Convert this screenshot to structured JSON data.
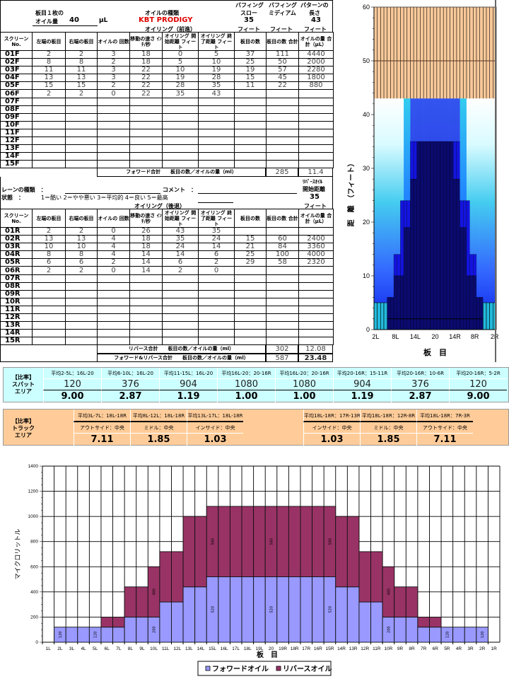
{
  "header": {
    "oil_per_board_label_1": "板目１枚の",
    "oil_per_board_label_2": "オイル量",
    "oil_per_board_value": "40",
    "oil_per_board_unit": "μL",
    "oil_type_label": "オイルの種類",
    "oil_type_value": "KBT PRODIGY",
    "forward_title": "オイリング（前進）",
    "buff_slow_1": "バフィング",
    "buff_slow_2": "スロー",
    "buff_slow_value": "35",
    "buff_slow_unit": "フィート",
    "buff_med_1": "バフィング",
    "buff_med_2": "ミディアム",
    "buff_med_unit": "フィート",
    "pattern_len_1": "パターンの",
    "pattern_len_2": "長さ",
    "pattern_len_value": "43",
    "pattern_len_unit": "フィート"
  },
  "columns": [
    "スクリーン No.",
    "左端の板目",
    "右端の板目",
    "オイルの 回数",
    "移動の速さ ｲﾝﾁ/秒",
    "オイリング 開始距離 フィート",
    "オイリング 終了距離 フィート",
    "板目の数",
    "板目の数 合計",
    "オイルの量 合計（μL）"
  ],
  "forward_rows": [
    [
      "01F",
      "2",
      "2",
      "3",
      "18",
      "0",
      "5",
      "37",
      "111",
      "4440"
    ],
    [
      "02F",
      "8",
      "8",
      "2",
      "18",
      "5",
      "10",
      "25",
      "50",
      "2000"
    ],
    [
      "03F",
      "11",
      "11",
      "3",
      "22",
      "10",
      "19",
      "19",
      "57",
      "2280"
    ],
    [
      "04F",
      "13",
      "13",
      "3",
      "22",
      "19",
      "28",
      "15",
      "45",
      "1800"
    ],
    [
      "05F",
      "15",
      "15",
      "2",
      "22",
      "28",
      "35",
      "11",
      "22",
      "880"
    ],
    [
      "06F",
      "2",
      "2",
      "0",
      "22",
      "35",
      "43",
      "",
      "",
      ""
    ],
    [
      "07F",
      "",
      "",
      "",
      "",
      "",
      "",
      "",
      "",
      ""
    ],
    [
      "08F",
      "",
      "",
      "",
      "",
      "",
      "",
      "",
      "",
      ""
    ],
    [
      "09F",
      "",
      "",
      "",
      "",
      "",
      "",
      "",
      "",
      ""
    ],
    [
      "10F",
      "",
      "",
      "",
      "",
      "",
      "",
      "",
      "",
      ""
    ],
    [
      "11F",
      "",
      "",
      "",
      "",
      "",
      "",
      "",
      "",
      ""
    ],
    [
      "12F",
      "",
      "",
      "",
      "",
      "",
      "",
      "",
      "",
      ""
    ],
    [
      "13F",
      "",
      "",
      "",
      "",
      "",
      "",
      "",
      "",
      ""
    ],
    [
      "14F",
      "",
      "",
      "",
      "",
      "",
      "",
      "",
      "",
      ""
    ],
    [
      "15F",
      "",
      "",
      "",
      "",
      "",
      "",
      "",
      "",
      ""
    ]
  ],
  "forward_total": {
    "label": "フォワード合計　　板目の数／オイルの量（ml）",
    "boards": "285",
    "oil": "11.4"
  },
  "info": {
    "lane_type_label": "レーンの種類　：",
    "comment_label": "コメント　：",
    "condition_label": "状態　：",
    "condition_scale": "1＝酷い 2＝やや悪い 3＝平均的 4＝良い 5＝最高",
    "reverse_title": "オイリング（後退）",
    "reverse_start_1": "ﾘﾊﾞｰｽｵｲﾙ",
    "reverse_start_2": "開始距離",
    "reverse_start_value": "35",
    "reverse_start_unit": "フィート"
  },
  "reverse_rows": [
    [
      "01R",
      "2",
      "2",
      "0",
      "26",
      "43",
      "35",
      "",
      "",
      ""
    ],
    [
      "02R",
      "13",
      "13",
      "4",
      "18",
      "35",
      "24",
      "15",
      "60",
      "2400"
    ],
    [
      "03R",
      "10",
      "10",
      "4",
      "18",
      "24",
      "14",
      "21",
      "84",
      "3360"
    ],
    [
      "04R",
      "8",
      "8",
      "4",
      "14",
      "14",
      "6",
      "25",
      "100",
      "4000"
    ],
    [
      "05R",
      "6",
      "6",
      "2",
      "14",
      "6",
      "2",
      "29",
      "58",
      "2320"
    ],
    [
      "06R",
      "2",
      "2",
      "0",
      "14",
      "2",
      "0",
      "",
      "",
      ""
    ],
    [
      "07R",
      "",
      "",
      "",
      "",
      "",
      "",
      "",
      "",
      ""
    ],
    [
      "08R",
      "",
      "",
      "",
      "",
      "",
      "",
      "",
      "",
      ""
    ],
    [
      "09R",
      "",
      "",
      "",
      "",
      "",
      "",
      "",
      "",
      ""
    ],
    [
      "10R",
      "",
      "",
      "",
      "",
      "",
      "",
      "",
      "",
      ""
    ],
    [
      "11R",
      "",
      "",
      "",
      "",
      "",
      "",
      "",
      "",
      ""
    ],
    [
      "12R",
      "",
      "",
      "",
      "",
      "",
      "",
      "",
      "",
      ""
    ],
    [
      "13R",
      "",
      "",
      "",
      "",
      "",
      "",
      "",
      "",
      ""
    ],
    [
      "14R",
      "",
      "",
      "",
      "",
      "",
      "",
      "",
      "",
      ""
    ],
    [
      "15R",
      "",
      "",
      "",
      "",
      "",
      "",
      "",
      "",
      ""
    ]
  ],
  "reverse_total": {
    "label": "リバース合計　　板目の数／オイルの量（ml）",
    "boards": "302",
    "oil": "12.08"
  },
  "grand_total": {
    "label": "フォワード&リバース合計　　板目の数／オイルの量（ml）",
    "boards": "587",
    "oil": "23.48"
  },
  "spot_area": {
    "label_1": "【比率】",
    "label_2": "スパット",
    "label_3": "エリア",
    "color": "#ccffff",
    "headers": [
      "平均2-5L：16L-20",
      "平均6-10L：16L-20",
      "平均11-15L：16L-20",
      "平均16L-20：20-16R",
      "平均16L-20：20-16R",
      "平均20-16R：15-11R",
      "平均20-16R：10-6R",
      "平均20-16R：5-2R"
    ],
    "values": [
      "120",
      "376",
      "904",
      "1080",
      "1080",
      "904",
      "376",
      "120"
    ],
    "ratios": [
      "9.00",
      "2.87",
      "1.19",
      "1.00",
      "1.00",
      "1.19",
      "2.87",
      "9.00"
    ]
  },
  "track_area": {
    "label_1": "【比率】",
    "label_2": "トラック",
    "label_3": "エリア",
    "color": "#ffcc99",
    "left": [
      {
        "header": "平均3L-7L：18L-18R",
        "sub": "アウトサイド：中央",
        "ratio": "7.11"
      },
      {
        "header": "平均8L-12L：18L-18R",
        "sub": "ミドル：中央",
        "ratio": "1.85"
      },
      {
        "header": "平均13L-17L：18L-18R",
        "sub": "インサイド：中央",
        "ratio": "1.03"
      }
    ],
    "right": [
      {
        "header": "平均18L-18R：17R-13R",
        "sub": "インサイド：中央",
        "ratio": "1.03"
      },
      {
        "header": "平均18L-18R：12R-8R",
        "sub": "ミドル：中央",
        "ratio": "1.85"
      },
      {
        "header": "平均18L-18R：7R-3R",
        "sub": "アウトサイド：中央",
        "ratio": "7.11"
      }
    ]
  },
  "chart_data": [
    {
      "type": "heatmap",
      "title": "",
      "xlabel": "板　目",
      "ylabel": "距　離　（フィート）",
      "ylim": [
        0,
        60
      ],
      "yticks": [
        0,
        10,
        20,
        30,
        40,
        50,
        60
      ],
      "xticks": [
        "2L",
        "8L",
        "14L",
        "20",
        "14R",
        "8R",
        "2R"
      ],
      "boards": [
        "2L",
        "3L",
        "4L",
        "5L",
        "6L",
        "7L",
        "8L",
        "9L",
        "10L",
        "11L",
        "12L",
        "13L",
        "14L",
        "15L",
        "16L",
        "17L",
        "18L",
        "19L",
        "20",
        "19R",
        "18R",
        "17R",
        "16R",
        "15R",
        "14R",
        "13R",
        "12R",
        "11R",
        "10R",
        "9R",
        "8R",
        "7R",
        "6R",
        "5R",
        "4R",
        "3R",
        "2R"
      ],
      "pattern_length_ft": 43,
      "colors": {
        "dense": "#0a0a6e",
        "medium": "#1414e0",
        "edge": "#22bbdd",
        "beyond_pattern": "#f9c99a"
      }
    },
    {
      "type": "bar",
      "stacked": true,
      "title": "",
      "xlabel": "板　目",
      "ylabel": "マイクロリットル",
      "ylim": [
        0,
        1400
      ],
      "yticks": [
        0,
        200,
        400,
        600,
        800,
        1000,
        1200,
        1400
      ],
      "grid": true,
      "legend": "bottom",
      "categories": [
        "1L",
        "2L",
        "3L",
        "4L",
        "5L",
        "6L",
        "7L",
        "8L",
        "9L",
        "10L",
        "11L",
        "12L",
        "13L",
        "14L",
        "15L",
        "16L",
        "17L",
        "18L",
        "19L",
        "20",
        "19R",
        "18R",
        "17R",
        "16R",
        "15R",
        "14R",
        "13R",
        "12R",
        "11R",
        "10R",
        "9R",
        "8R",
        "7R",
        "6R",
        "5R",
        "4R",
        "3R",
        "2R",
        "1R"
      ],
      "series": [
        {
          "name": "フォワードオイル",
          "color": "#9999ff",
          "values": [
            0,
            120,
            120,
            120,
            120,
            120,
            120,
            200,
            200,
            200,
            320,
            320,
            440,
            440,
            520,
            520,
            520,
            520,
            520,
            520,
            520,
            520,
            520,
            520,
            520,
            440,
            440,
            320,
            320,
            200,
            200,
            200,
            120,
            120,
            120,
            120,
            120,
            120,
            0
          ],
          "labeled": [
            "2L",
            "5L",
            "10L",
            "15L",
            "20",
            "15R",
            "10R",
            "5R",
            "2R"
          ]
        },
        {
          "name": "リバースオイル",
          "color": "#993366",
          "values": [
            0,
            0,
            0,
            0,
            0,
            80,
            80,
            240,
            240,
            400,
            400,
            400,
            560,
            560,
            560,
            560,
            560,
            560,
            560,
            560,
            560,
            560,
            560,
            560,
            560,
            560,
            560,
            400,
            400,
            400,
            240,
            240,
            80,
            80,
            0,
            0,
            0,
            0,
            0
          ],
          "labeled": [
            "10L",
            "15L",
            "20",
            "15R",
            "10R"
          ]
        }
      ]
    }
  ]
}
